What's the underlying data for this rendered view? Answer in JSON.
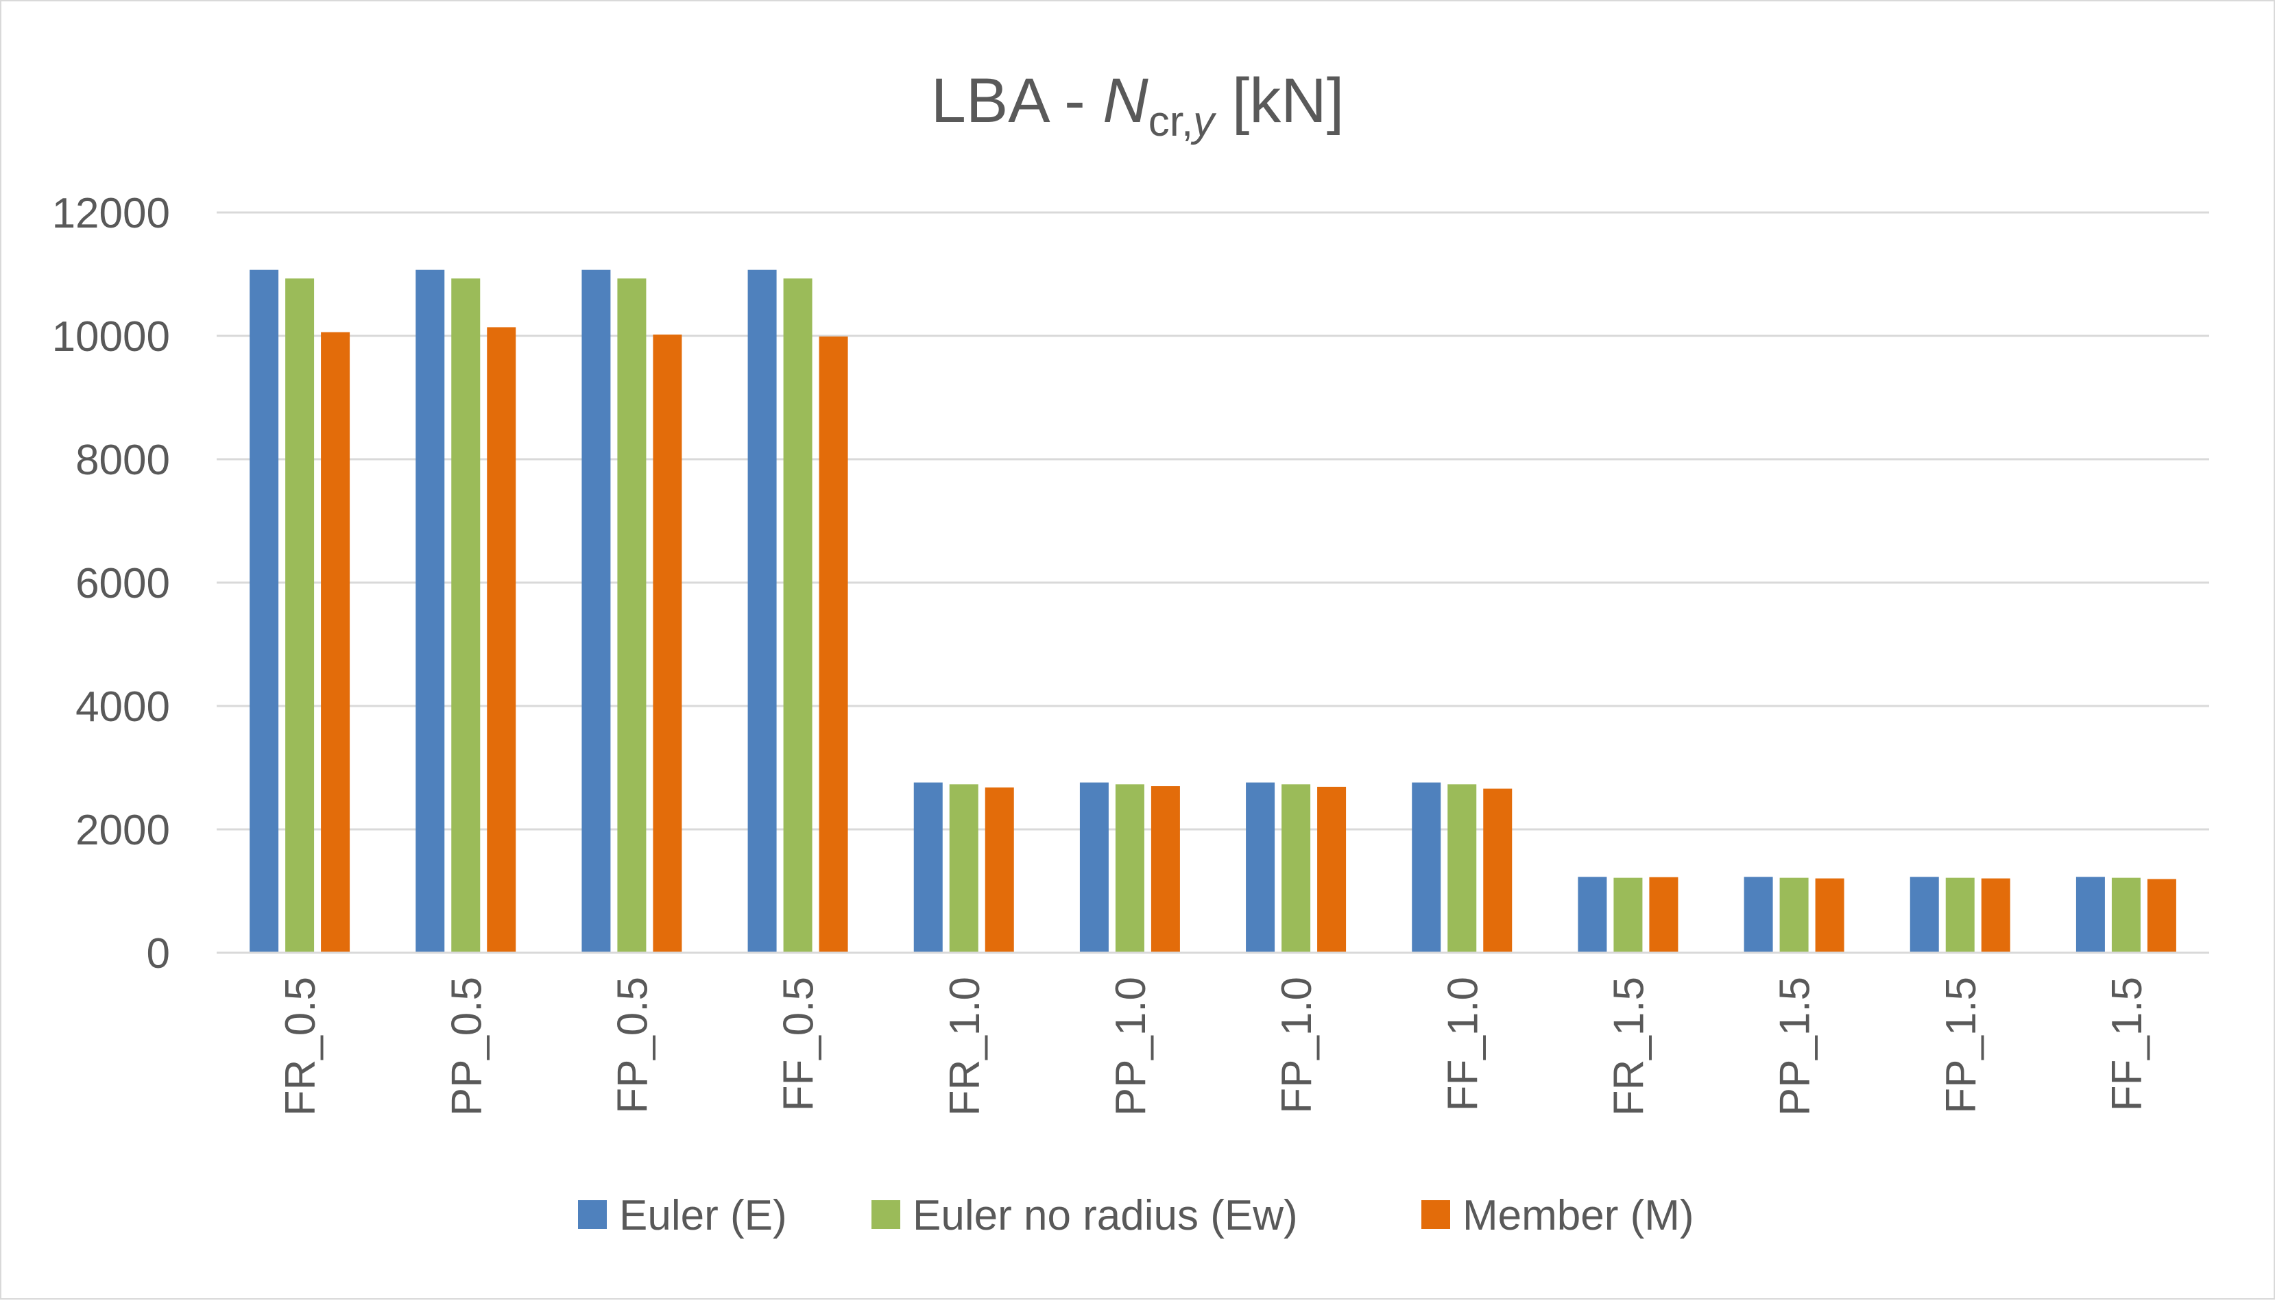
{
  "chart_data": {
    "type": "bar",
    "title": {
      "prefix": "LBA - ",
      "symbol": "N",
      "subscript_a": "cr,",
      "subscript_b": "y",
      "suffix": " [kN]"
    },
    "categories": [
      "FR_0.5",
      "PP_0.5",
      "FP_0.5",
      "FF_0.5",
      "FR_1.0",
      "PP_1.0",
      "FP_1.0",
      "FF_1.0",
      "FR_1.5",
      "PP_1.5",
      "FP_1.5",
      "FF_1.5"
    ],
    "series": [
      {
        "name": "Euler (E)",
        "color": "#4F81BD",
        "values": [
          11070,
          11070,
          11070,
          11070,
          2760,
          2760,
          2760,
          2760,
          1230,
          1230,
          1230,
          1230
        ]
      },
      {
        "name": "Euler no radius (Ew)",
        "color": "#9BBB59",
        "values": [
          10930,
          10930,
          10930,
          10930,
          2730,
          2730,
          2730,
          2730,
          1215,
          1215,
          1215,
          1215
        ]
      },
      {
        "name": "Member (M)",
        "color": "#E36C0A",
        "values": [
          10060,
          10140,
          10020,
          9990,
          2680,
          2700,
          2690,
          2660,
          1225,
          1205,
          1205,
          1195
        ]
      }
    ],
    "ylim": [
      0,
      12000
    ],
    "yticks": [
      "0",
      "2000",
      "4000",
      "6000",
      "8000",
      "10000",
      "12000"
    ],
    "grid": true,
    "legend_position": "bottom"
  }
}
